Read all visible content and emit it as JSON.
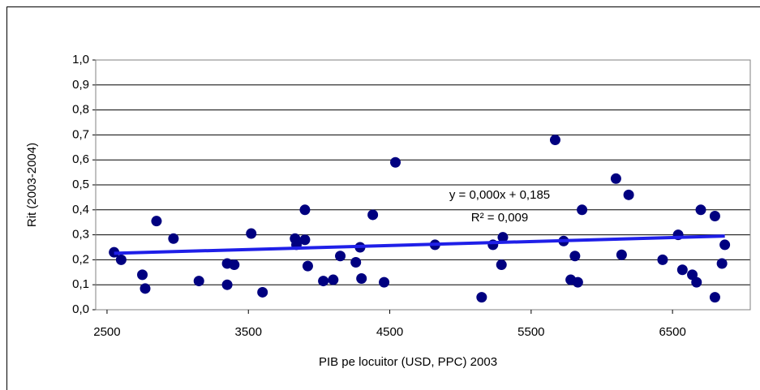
{
  "chart_data": {
    "type": "scatter",
    "x_label": "PIB pe locuitor (USD, PPC) 2003",
    "y_label": "Rit (2003-2004)",
    "series": [
      {
        "color": "#000080",
        "x": [
          2550,
          2600,
          2750,
          2770,
          2850,
          2970,
          3150,
          3350,
          3350,
          3400,
          3520,
          3600,
          3830,
          3840,
          3900,
          3900,
          3920,
          4030,
          4100,
          4150,
          4260,
          4290,
          4300,
          4380,
          4460,
          4540,
          4820,
          5150,
          5230,
          5290,
          5300,
          5670,
          5730,
          5780,
          5810,
          5830,
          5860,
          6100,
          6140,
          6190,
          6430,
          6540,
          6570,
          6640,
          6670,
          6700,
          6800,
          6800,
          6850,
          6870
        ],
        "values": [
          0.23,
          0.2,
          0.14,
          0.085,
          0.355,
          0.285,
          0.115,
          0.185,
          0.1,
          0.18,
          0.305,
          0.07,
          0.285,
          0.26,
          0.4,
          0.28,
          0.175,
          0.115,
          0.12,
          0.215,
          0.19,
          0.25,
          0.125,
          0.38,
          0.11,
          0.59,
          0.26,
          0.05,
          0.26,
          0.18,
          0.29,
          0.68,
          0.275,
          0.12,
          0.215,
          0.11,
          0.4,
          0.525,
          0.22,
          0.46,
          0.2,
          0.3,
          0.16,
          0.14,
          0.11,
          0.4,
          0.375,
          0.05,
          0.185,
          0.26
        ]
      }
    ],
    "trendline": {
      "color": "#1f1fe8",
      "x": [
        2550,
        6870
      ],
      "values": [
        0.226,
        0.295
      ]
    },
    "annotations": [
      "y = 0,000x + 0,185",
      "R² = 0,009"
    ],
    "xlim": [
      2420,
      7050
    ],
    "xticks": [
      2500,
      3500,
      4500,
      5500,
      6500
    ],
    "ylim": [
      0,
      1
    ],
    "yticks": [
      {
        "value": 0,
        "label": "0,0"
      },
      {
        "value": 0.1,
        "label": "0,1"
      },
      {
        "value": 0.2,
        "label": "0,2"
      },
      {
        "value": 0.3,
        "label": "0,3"
      },
      {
        "value": 0.4,
        "label": "0,4"
      },
      {
        "value": 0.5,
        "label": "0,5"
      },
      {
        "value": 0.6,
        "label": "0,6"
      },
      {
        "value": 0.7,
        "label": "0,7"
      },
      {
        "value": 0.8,
        "label": "0,8"
      },
      {
        "value": 0.9,
        "label": "0,9"
      },
      {
        "value": 1,
        "label": "1,0"
      }
    ],
    "grid": true
  }
}
